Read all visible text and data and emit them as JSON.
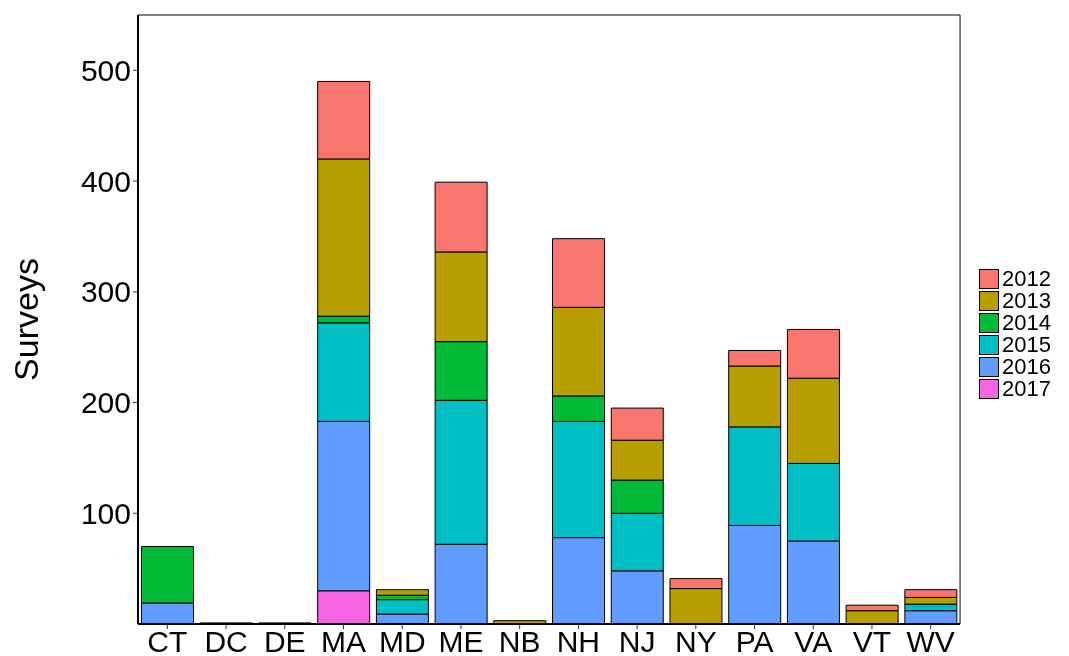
{
  "chart_data": {
    "type": "bar",
    "stacked": true,
    "ylabel": "Surveys",
    "categories": [
      "CT",
      "DC",
      "DE",
      "MA",
      "MD",
      "ME",
      "NB",
      "NH",
      "NJ",
      "NY",
      "PA",
      "VA",
      "VT",
      "WV"
    ],
    "series": [
      {
        "name": "2017",
        "color": "#f564e3",
        "values": [
          0,
          0,
          0,
          30,
          0,
          0,
          0,
          0,
          0,
          0,
          0,
          0,
          0,
          0
        ]
      },
      {
        "name": "2016",
        "color": "#619cff",
        "values": [
          19,
          0,
          0,
          153,
          9,
          72,
          0,
          78,
          48,
          0,
          89,
          75,
          0,
          12
        ]
      },
      {
        "name": "2015",
        "color": "#00bfc4",
        "values": [
          0,
          0,
          0,
          89,
          13,
          130,
          0,
          105,
          52,
          0,
          89,
          70,
          0,
          6
        ]
      },
      {
        "name": "2014",
        "color": "#00ba38",
        "values": [
          51,
          0,
          0,
          6,
          4,
          53,
          0,
          23,
          30,
          0,
          0,
          0,
          0,
          0
        ]
      },
      {
        "name": "2013",
        "color": "#b79f00",
        "values": [
          0,
          1,
          1,
          142,
          5,
          81,
          3,
          80,
          36,
          32,
          55,
          77,
          12,
          6
        ]
      },
      {
        "name": "2012",
        "color": "#f8766d",
        "values": [
          0,
          0,
          0,
          70,
          0,
          63,
          0,
          62,
          29,
          9,
          14,
          44,
          5,
          7
        ]
      }
    ],
    "ylim": [
      0,
      550
    ],
    "yticks": [
      100,
      200,
      300,
      400,
      500
    ],
    "grid": false,
    "legend": "right"
  }
}
